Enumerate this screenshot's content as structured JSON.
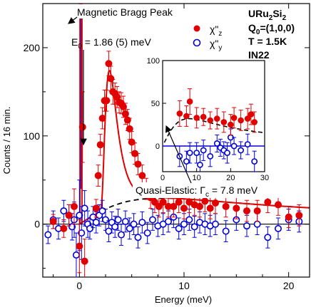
{
  "chart_data": {
    "type": "scatter",
    "xlabel": "Energy (meV)",
    "ylabel": "Counts / 16 min.",
    "xlim": [
      -3.5,
      22
    ],
    "ylim": [
      -60,
      250
    ],
    "xticks": [
      0,
      10,
      20
    ],
    "yticks": [
      0,
      100,
      200
    ],
    "info": {
      "line1": "URu",
      "line1_sub": "2",
      "line1_tail": "Si",
      "line1_sub2": "2",
      "line2": "Q",
      "line2_sub": "0",
      "line2_tail": "=(1,0,0)",
      "line3": "T = 1.5K",
      "line4": "IN22"
    },
    "legend": [
      {
        "label": "χ\"",
        "sub": "z",
        "marker": "filled",
        "color": "#e00000"
      },
      {
        "label": "χ\"",
        "sub": "y",
        "marker": "open",
        "color": "#0000dd"
      }
    ],
    "annotations": {
      "bragg": "Magnetic Bragg Peak",
      "e0_pre": "E",
      "e0_sub": "0",
      "e0_post": " = 1.86 (5) meV",
      "quasi_pre": "Quasi-Elastic: Γ",
      "quasi_sub": "c",
      "quasi_post": " = 7.8 meV"
    },
    "series": [
      {
        "name": "χ\"z",
        "color": "#e00000",
        "marker": "filled",
        "points": [
          {
            "x": -2.5,
            "y": 3,
            "e": 8
          },
          {
            "x": -1.5,
            "y": -5,
            "e": 10
          },
          {
            "x": -1.0,
            "y": 10,
            "e": 12
          },
          {
            "x": -0.5,
            "y": 20,
            "e": 20
          },
          {
            "x": 0.0,
            "y": -25,
            "e": 30
          },
          {
            "x": 0.3,
            "y": 110,
            "e": 40
          },
          {
            "x": 0.5,
            "y": -42,
            "e": 25
          },
          {
            "x": 1.6,
            "y": 18,
            "e": 10
          },
          {
            "x": 1.8,
            "y": 55,
            "e": 12
          },
          {
            "x": 2.0,
            "y": 90,
            "e": 12
          },
          {
            "x": 2.2,
            "y": 120,
            "e": 12
          },
          {
            "x": 2.4,
            "y": 140,
            "e": 12
          },
          {
            "x": 2.6,
            "y": 140,
            "e": 12
          },
          {
            "x": 2.8,
            "y": 182,
            "e": 14
          },
          {
            "x": 3.0,
            "y": 165,
            "e": 14
          },
          {
            "x": 3.2,
            "y": 150,
            "e": 14
          },
          {
            "x": 3.4,
            "y": 148,
            "e": 12
          },
          {
            "x": 3.6,
            "y": 144,
            "e": 12
          },
          {
            "x": 3.8,
            "y": 138,
            "e": 12
          },
          {
            "x": 4.0,
            "y": 137,
            "e": 12
          },
          {
            "x": 4.2,
            "y": 133,
            "e": 12
          },
          {
            "x": 4.4,
            "y": 125,
            "e": 12
          },
          {
            "x": 4.6,
            "y": 118,
            "e": 12
          },
          {
            "x": 4.8,
            "y": 108,
            "e": 12
          },
          {
            "x": 5.0,
            "y": 93,
            "e": 12
          },
          {
            "x": 5.3,
            "y": 80,
            "e": 12
          },
          {
            "x": 5.6,
            "y": 68,
            "e": 12
          },
          {
            "x": 6.0,
            "y": 55,
            "e": 12
          },
          {
            "x": 6.4,
            "y": 40,
            "e": 12
          },
          {
            "x": 6.8,
            "y": 30,
            "e": 12
          },
          {
            "x": 7.2,
            "y": 25,
            "e": 12
          },
          {
            "x": 7.6,
            "y": 20,
            "e": 12
          },
          {
            "x": 8.0,
            "y": 25,
            "e": 12
          },
          {
            "x": 8.5,
            "y": 20,
            "e": 12
          },
          {
            "x": 9.0,
            "y": 20,
            "e": 12
          },
          {
            "x": 9.5,
            "y": 25,
            "e": 12
          },
          {
            "x": 10.0,
            "y": 18,
            "e": 12
          },
          {
            "x": 10.5,
            "y": 25,
            "e": 12
          },
          {
            "x": 11.0,
            "y": 22,
            "e": 12
          },
          {
            "x": 11.5,
            "y": 20,
            "e": 12
          },
          {
            "x": 12.0,
            "y": 26,
            "e": 12
          },
          {
            "x": 12.5,
            "y": 18,
            "e": 12
          },
          {
            "x": 13.0,
            "y": 24,
            "e": 12
          },
          {
            "x": 14.0,
            "y": 20,
            "e": 12
          },
          {
            "x": 15.0,
            "y": 18,
            "e": 12
          },
          {
            "x": 16.0,
            "y": 15,
            "e": 12
          },
          {
            "x": 17.0,
            "y": 15,
            "e": 12
          },
          {
            "x": 18.0,
            "y": 25,
            "e": 12
          },
          {
            "x": 19.0,
            "y": 22,
            "e": 12
          },
          {
            "x": 20.0,
            "y": 8,
            "e": 12
          },
          {
            "x": 21.0,
            "y": 10,
            "e": 12
          }
        ]
      },
      {
        "name": "χ\"y",
        "color": "#0000dd",
        "marker": "open",
        "points": [
          {
            "x": -3.0,
            "y": -12,
            "e": 10
          },
          {
            "x": -2.5,
            "y": 5,
            "e": 10
          },
          {
            "x": -2.0,
            "y": -5,
            "e": 12
          },
          {
            "x": -1.5,
            "y": 15,
            "e": 12
          },
          {
            "x": -1.0,
            "y": 10,
            "e": 12
          },
          {
            "x": -0.7,
            "y": -3,
            "e": 15
          },
          {
            "x": -0.5,
            "y": 5,
            "e": 20
          },
          {
            "x": -0.3,
            "y": -35,
            "e": 25
          },
          {
            "x": 0.0,
            "y": 10,
            "e": 40
          },
          {
            "x": 0.2,
            "y": -10,
            "e": 30
          },
          {
            "x": 0.5,
            "y": 18,
            "e": 20
          },
          {
            "x": 0.8,
            "y": 0,
            "e": 15
          },
          {
            "x": 1.0,
            "y": -5,
            "e": 12
          },
          {
            "x": 1.3,
            "y": 8,
            "e": 12
          },
          {
            "x": 1.6,
            "y": 2,
            "e": 12
          },
          {
            "x": 1.9,
            "y": 10,
            "e": 12
          },
          {
            "x": 2.2,
            "y": 15,
            "e": 12
          },
          {
            "x": 2.5,
            "y": 5,
            "e": 12
          },
          {
            "x": 2.8,
            "y": -8,
            "e": 12
          },
          {
            "x": 3.1,
            "y": 2,
            "e": 12
          },
          {
            "x": 3.4,
            "y": -3,
            "e": 12
          },
          {
            "x": 3.7,
            "y": 5,
            "e": 12
          },
          {
            "x": 4.0,
            "y": -12,
            "e": 12
          },
          {
            "x": 4.4,
            "y": 3,
            "e": 12
          },
          {
            "x": 4.8,
            "y": -5,
            "e": 12
          },
          {
            "x": 5.2,
            "y": 0,
            "e": 12
          },
          {
            "x": 5.6,
            "y": -15,
            "e": 12
          },
          {
            "x": 6.0,
            "y": 2,
            "e": 12
          },
          {
            "x": 6.5,
            "y": -10,
            "e": 12
          },
          {
            "x": 7.0,
            "y": 5,
            "e": 12
          },
          {
            "x": 7.5,
            "y": -2,
            "e": 12
          },
          {
            "x": 8.0,
            "y": 0,
            "e": 12
          },
          {
            "x": 8.5,
            "y": 3,
            "e": 12
          },
          {
            "x": 9.0,
            "y": 8,
            "e": 12
          },
          {
            "x": 9.5,
            "y": -5,
            "e": 12
          },
          {
            "x": 10.0,
            "y": 0,
            "e": 12
          },
          {
            "x": 10.5,
            "y": 5,
            "e": 12
          },
          {
            "x": 11.0,
            "y": -3,
            "e": 12
          },
          {
            "x": 11.5,
            "y": 2,
            "e": 12
          },
          {
            "x": 12.0,
            "y": 0,
            "e": 12
          },
          {
            "x": 12.5,
            "y": -2,
            "e": 12
          },
          {
            "x": 13.0,
            "y": 0,
            "e": 12
          },
          {
            "x": 14.0,
            "y": -8,
            "e": 12
          },
          {
            "x": 15.0,
            "y": 5,
            "e": 12
          },
          {
            "x": 16.0,
            "y": -2,
            "e": 12
          },
          {
            "x": 17.0,
            "y": 0,
            "e": 12
          },
          {
            "x": 18.0,
            "y": -15,
            "e": 12
          },
          {
            "x": 19.0,
            "y": -5,
            "e": 12
          },
          {
            "x": 20.0,
            "y": 5,
            "e": 12
          },
          {
            "x": 21.0,
            "y": 3,
            "e": 12
          }
        ]
      }
    ],
    "fit_curves": [
      {
        "name": "total-fit",
        "style": "solid",
        "color": "#e00000"
      },
      {
        "name": "quasi-elastic-fit",
        "style": "dashed",
        "color": "#000000"
      },
      {
        "name": "baseline",
        "style": "solid",
        "color": "#000000"
      }
    ],
    "inset": {
      "xlim": [
        0,
        30
      ],
      "ylim": [
        -30,
        100
      ],
      "xticks": [
        0,
        10,
        20,
        30
      ],
      "yticks": [
        0,
        50,
        100
      ],
      "red_points": [
        {
          "x": 5,
          "y": 38,
          "e": 15
        },
        {
          "x": 7,
          "y": 35,
          "e": 12
        },
        {
          "x": 8,
          "y": 52,
          "e": 15
        },
        {
          "x": 10,
          "y": 33,
          "e": 12
        },
        {
          "x": 12,
          "y": 34,
          "e": 10
        },
        {
          "x": 14,
          "y": 30,
          "e": 10
        },
        {
          "x": 16,
          "y": 32,
          "e": 12
        },
        {
          "x": 18,
          "y": 28,
          "e": 12
        },
        {
          "x": 20,
          "y": 25,
          "e": 12
        },
        {
          "x": 21,
          "y": 33,
          "e": 12
        },
        {
          "x": 23,
          "y": 30,
          "e": 12
        },
        {
          "x": 25,
          "y": 32,
          "e": 12
        },
        {
          "x": 26,
          "y": 37,
          "e": 12
        },
        {
          "x": 27,
          "y": 28,
          "e": 12
        }
      ],
      "blue_points": [
        {
          "x": 5,
          "y": -12,
          "e": 12
        },
        {
          "x": 7,
          "y": -18,
          "e": 12
        },
        {
          "x": 8,
          "y": -8,
          "e": 12
        },
        {
          "x": 10,
          "y": -8,
          "e": 12
        },
        {
          "x": 11,
          "y": -22,
          "e": 12
        },
        {
          "x": 12,
          "y": -5,
          "e": 12
        },
        {
          "x": 14,
          "y": -12,
          "e": 12
        },
        {
          "x": 16,
          "y": 3,
          "e": 10
        },
        {
          "x": 17,
          "y": -2,
          "e": 10
        },
        {
          "x": 18,
          "y": -5,
          "e": 10
        },
        {
          "x": 19,
          "y": -8,
          "e": 12
        },
        {
          "x": 20,
          "y": 10,
          "e": 10
        },
        {
          "x": 21,
          "y": 0,
          "e": 10
        },
        {
          "x": 23,
          "y": -5,
          "e": 10
        },
        {
          "x": 25,
          "y": 2,
          "e": 12
        },
        {
          "x": 27,
          "y": -18,
          "e": 12
        }
      ]
    }
  }
}
